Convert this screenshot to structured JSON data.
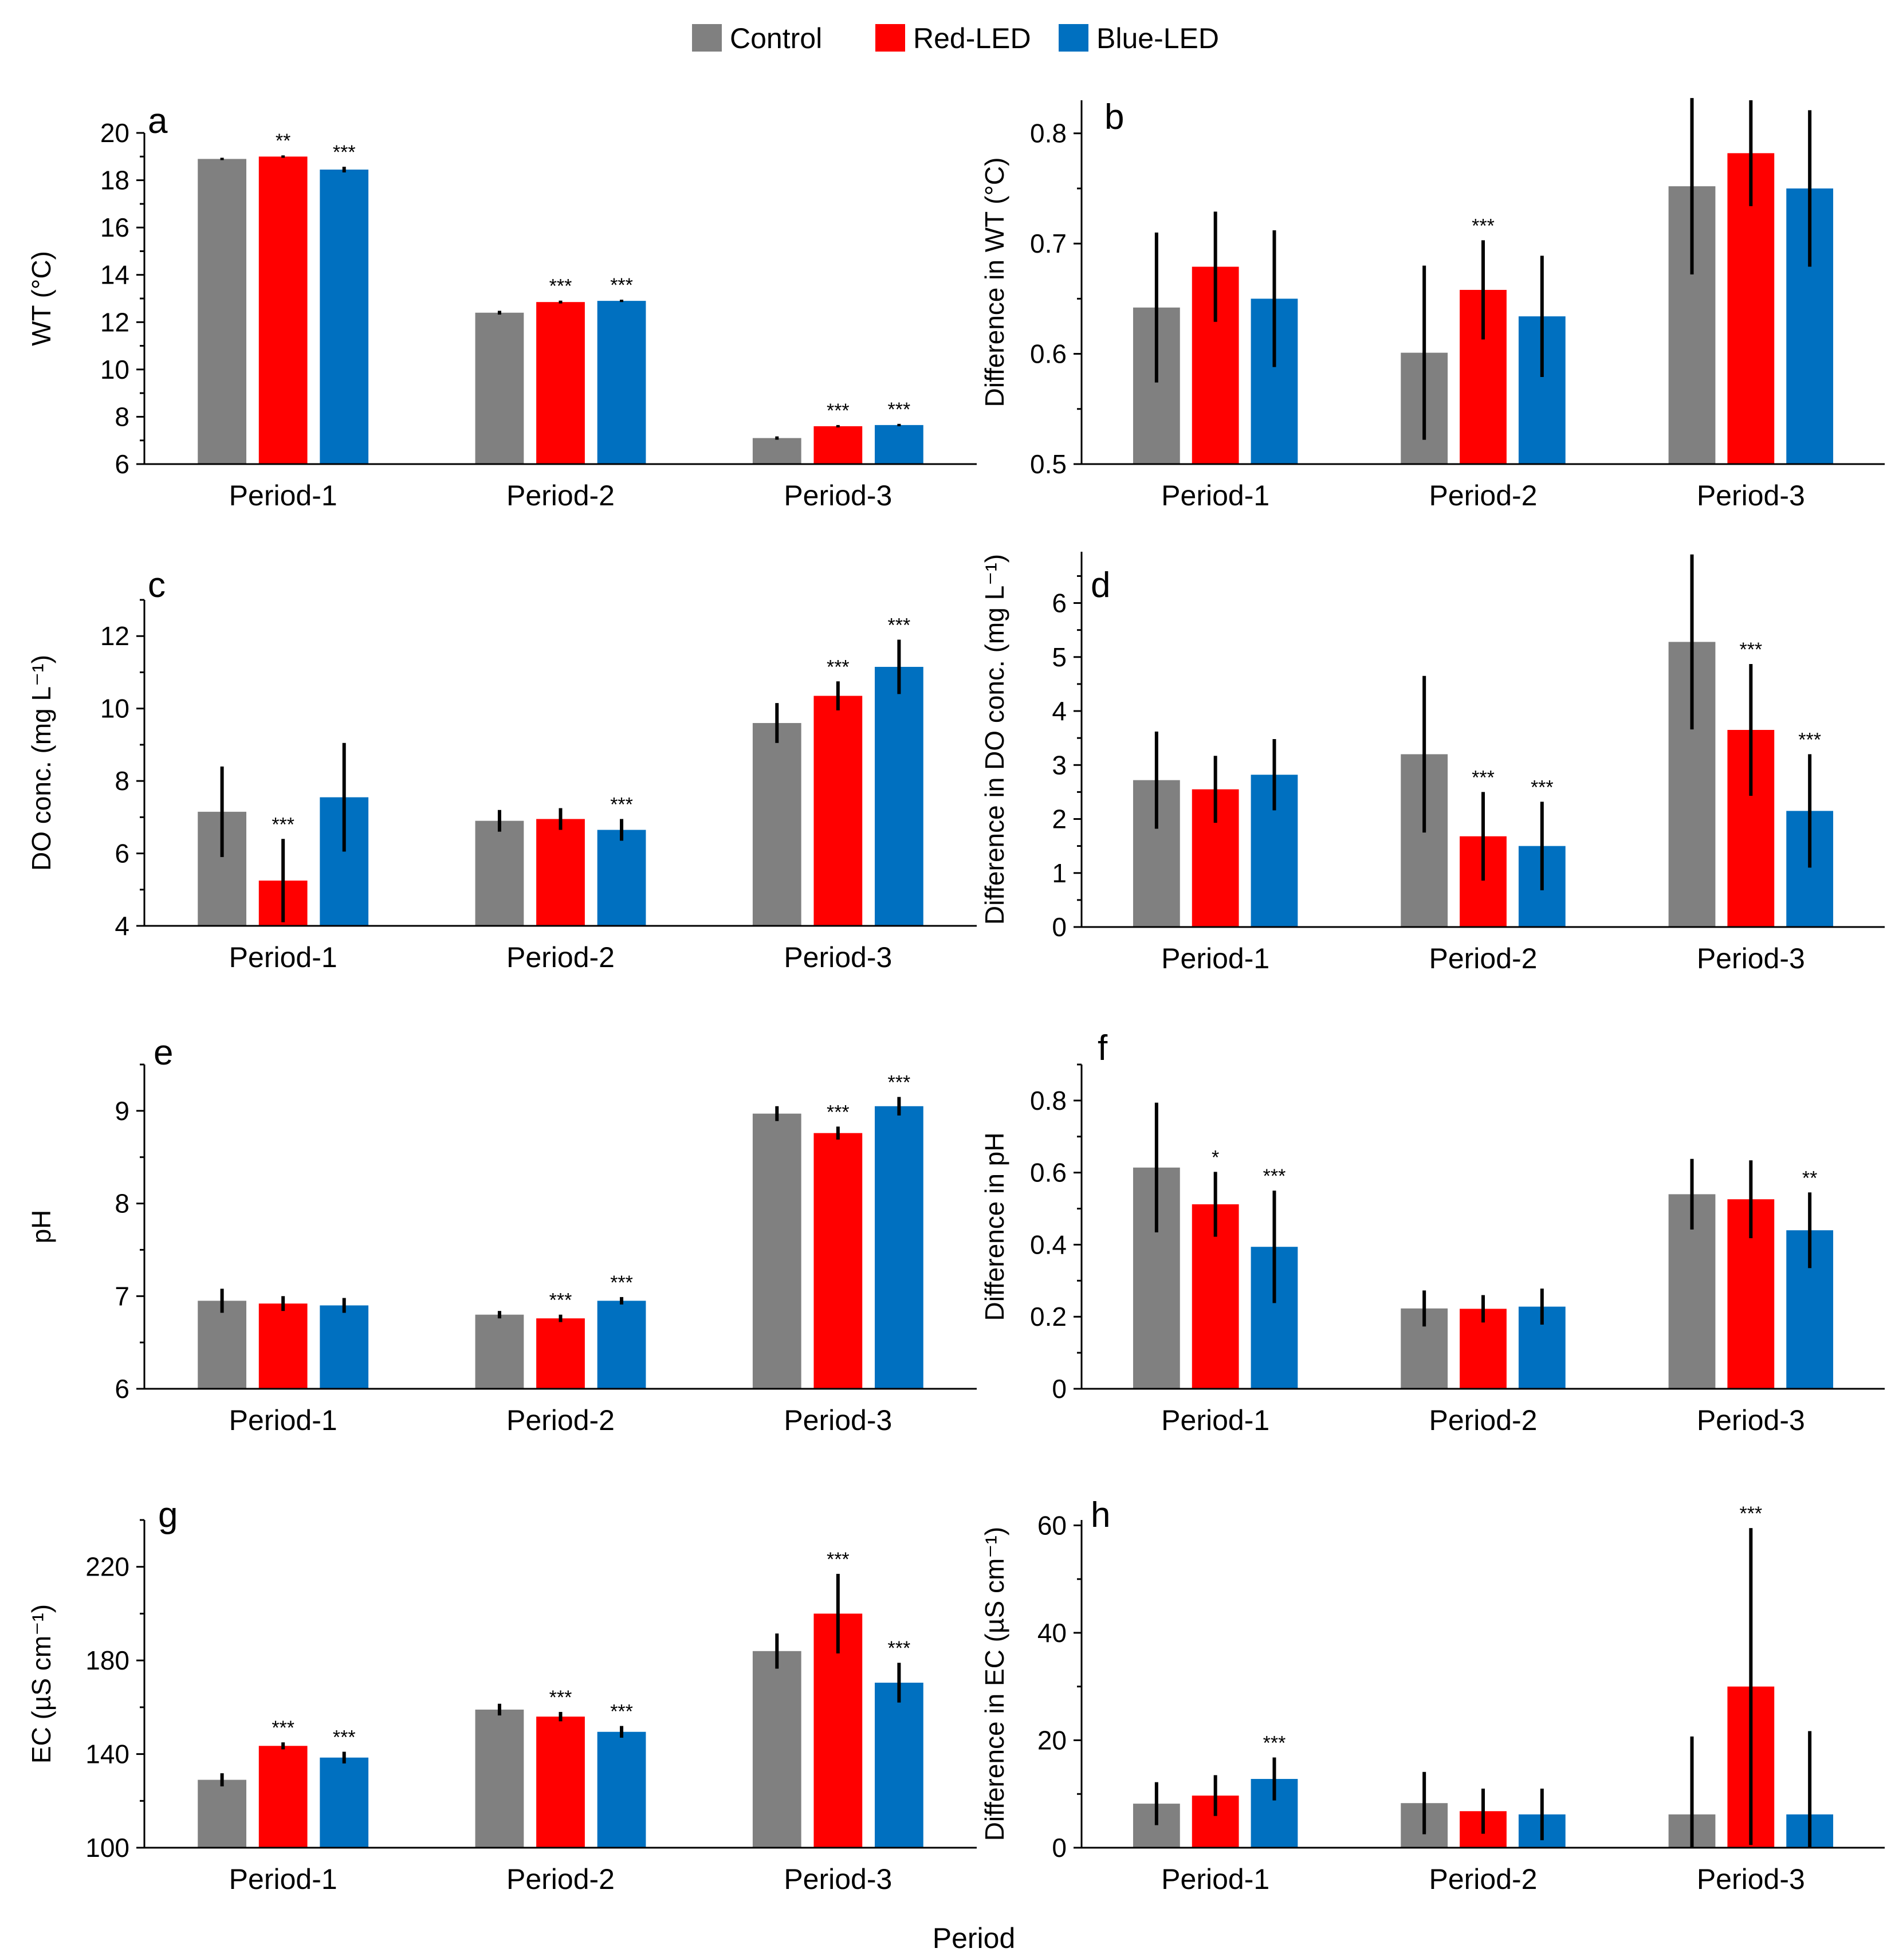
{
  "legend": [
    {
      "label": "Control",
      "color": "#808080"
    },
    {
      "label": "Red-LED",
      "color": "#ff0000"
    },
    {
      "label": "Blue-LED",
      "color": "#0070c0"
    }
  ],
  "x_title": "Period",
  "chart_data": [
    {
      "id": "a",
      "letter": "a",
      "type": "bar",
      "categories": [
        "Period-1",
        "Period-2",
        "Period-3"
      ],
      "ylabel": "WT (°C)",
      "ylim": [
        6,
        20
      ],
      "yticks": [
        6,
        8,
        10,
        12,
        14,
        16,
        18,
        20
      ],
      "series": [
        {
          "name": "Control",
          "values": [
            18.9,
            12.4,
            7.1
          ],
          "errors": [
            0.05,
            0.08,
            0.07
          ],
          "sig": [
            "",
            "",
            ""
          ]
        },
        {
          "name": "Red-LED",
          "values": [
            19.0,
            12.85,
            7.6
          ],
          "errors": [
            0.05,
            0.06,
            0.05
          ],
          "sig": [
            "**",
            "***",
            "***"
          ]
        },
        {
          "name": "Blue-LED",
          "values": [
            18.45,
            12.9,
            7.65
          ],
          "errors": [
            0.12,
            0.05,
            0.05
          ],
          "sig": [
            "***",
            "***",
            "***"
          ]
        }
      ]
    },
    {
      "id": "b",
      "letter": "b",
      "type": "bar",
      "categories": [
        "Period-1",
        "Period-2",
        "Period-3"
      ],
      "ylabel": "Difference in WT (°C)",
      "ylim": [
        0.5,
        0.83
      ],
      "yticks": [
        0.5,
        0.6,
        0.7,
        0.8
      ],
      "series": [
        {
          "name": "Control",
          "values": [
            0.642,
            0.601,
            0.752
          ],
          "errors": [
            0.068,
            0.079,
            0.08
          ],
          "sig": [
            "",
            "",
            ""
          ]
        },
        {
          "name": "Red-LED",
          "values": [
            0.679,
            0.658,
            0.782
          ],
          "errors": [
            0.05,
            0.045,
            0.048
          ],
          "sig": [
            "",
            "***",
            ""
          ]
        },
        {
          "name": "Blue-LED",
          "values": [
            0.65,
            0.634,
            0.75
          ],
          "errors": [
            0.062,
            0.055,
            0.071
          ],
          "sig": [
            "",
            "",
            ""
          ]
        }
      ]
    },
    {
      "id": "c",
      "letter": "c",
      "type": "bar",
      "categories": [
        "Period-1",
        "Period-2",
        "Period-3"
      ],
      "ylabel": "DO conc. (mg L⁻¹)",
      "ylim": [
        4,
        13
      ],
      "yticks": [
        4,
        6,
        8,
        10,
        12
      ],
      "series": [
        {
          "name": "Control",
          "values": [
            7.15,
            6.9,
            9.6
          ],
          "errors": [
            1.25,
            0.3,
            0.55
          ],
          "sig": [
            "",
            "",
            ""
          ]
        },
        {
          "name": "Red-LED",
          "values": [
            5.25,
            6.95,
            10.35
          ],
          "errors": [
            1.15,
            0.3,
            0.4
          ],
          "sig": [
            "***",
            "",
            "***"
          ]
        },
        {
          "name": "Blue-LED",
          "values": [
            7.55,
            6.65,
            11.15
          ],
          "errors": [
            1.5,
            0.3,
            0.75
          ],
          "sig": [
            "",
            "***",
            "***"
          ]
        }
      ]
    },
    {
      "id": "d",
      "letter": "d",
      "type": "bar",
      "categories": [
        "Period-1",
        "Period-2",
        "Period-3"
      ],
      "ylabel": "Difference in DO conc. (mg L⁻¹)",
      "ylim": [
        0,
        6.95
      ],
      "yticks": [
        0,
        1,
        2,
        3,
        4,
        5,
        6
      ],
      "series": [
        {
          "name": "Control",
          "values": [
            2.72,
            3.2,
            5.28
          ],
          "errors": [
            0.9,
            1.45,
            1.62
          ],
          "sig": [
            "",
            "",
            ""
          ]
        },
        {
          "name": "Red-LED",
          "values": [
            2.55,
            1.68,
            3.65
          ],
          "errors": [
            0.62,
            0.82,
            1.22
          ],
          "sig": [
            "",
            "***",
            "***"
          ]
        },
        {
          "name": "Blue-LED",
          "values": [
            2.82,
            1.5,
            2.15
          ],
          "errors": [
            0.66,
            0.82,
            1.05
          ],
          "sig": [
            "",
            "***",
            "***"
          ]
        }
      ]
    },
    {
      "id": "e",
      "letter": "e",
      "type": "bar",
      "categories": [
        "Period-1",
        "Period-2",
        "Period-3"
      ],
      "ylabel": "pH",
      "ylim": [
        6,
        9.5
      ],
      "yticks": [
        6,
        7,
        8,
        9
      ],
      "series": [
        {
          "name": "Control",
          "values": [
            6.95,
            6.8,
            8.97
          ],
          "errors": [
            0.13,
            0.04,
            0.08
          ],
          "sig": [
            "",
            "",
            ""
          ]
        },
        {
          "name": "Red-LED",
          "values": [
            6.92,
            6.76,
            8.76
          ],
          "errors": [
            0.08,
            0.04,
            0.07
          ],
          "sig": [
            "",
            "***",
            "***"
          ]
        },
        {
          "name": "Blue-LED",
          "values": [
            6.9,
            6.95,
            9.05
          ],
          "errors": [
            0.08,
            0.04,
            0.1
          ],
          "sig": [
            "",
            "***",
            "***"
          ]
        }
      ]
    },
    {
      "id": "f",
      "letter": "f",
      "type": "bar",
      "categories": [
        "Period-1",
        "Period-2",
        "Period-3"
      ],
      "ylabel": "Difference in pH",
      "ylim": [
        0,
        0.9
      ],
      "yticks": [
        0,
        0.2,
        0.4,
        0.6,
        0.8
      ],
      "series": [
        {
          "name": "Control",
          "values": [
            0.614,
            0.223,
            0.54
          ],
          "errors": [
            0.18,
            0.05,
            0.098
          ],
          "sig": [
            "",
            "",
            ""
          ]
        },
        {
          "name": "Red-LED",
          "values": [
            0.512,
            0.222,
            0.526
          ],
          "errors": [
            0.09,
            0.038,
            0.108
          ],
          "sig": [
            "*",
            "",
            ""
          ]
        },
        {
          "name": "Blue-LED",
          "values": [
            0.394,
            0.228,
            0.44
          ],
          "errors": [
            0.156,
            0.05,
            0.105
          ],
          "sig": [
            "***",
            "",
            "**"
          ]
        }
      ]
    },
    {
      "id": "g",
      "letter": "g",
      "type": "bar",
      "categories": [
        "Period-1",
        "Period-2",
        "Period-3"
      ],
      "ylabel": "EC (µS cm⁻¹)",
      "ylim": [
        100,
        240
      ],
      "yticks": [
        100,
        140,
        180,
        220
      ],
      "series": [
        {
          "name": "Control",
          "values": [
            129,
            159,
            184
          ],
          "errors": [
            2.8,
            2.5,
            7.5
          ],
          "sig": [
            "",
            "",
            ""
          ]
        },
        {
          "name": "Red-LED",
          "values": [
            143.5,
            156,
            200
          ],
          "errors": [
            1.5,
            2.0,
            17
          ],
          "sig": [
            "***",
            "***",
            "***"
          ]
        },
        {
          "name": "Blue-LED",
          "values": [
            138.5,
            149.5,
            170.5
          ],
          "errors": [
            2.5,
            2.5,
            8.5
          ],
          "sig": [
            "***",
            "***",
            "***"
          ]
        }
      ]
    },
    {
      "id": "h",
      "letter": "h",
      "type": "bar",
      "categories": [
        "Period-1",
        "Period-2",
        "Period-3"
      ],
      "ylabel": "Difference in EC (µS cm⁻¹)",
      "ylim": [
        0,
        61
      ],
      "yticks": [
        0,
        20,
        40,
        60
      ],
      "series": [
        {
          "name": "Control",
          "values": [
            8.2,
            8.3,
            6.2
          ],
          "errors": [
            4.0,
            5.8,
            14.5
          ],
          "sig": [
            "",
            "",
            ""
          ]
        },
        {
          "name": "Red-LED",
          "values": [
            9.7,
            6.8,
            30
          ],
          "errors": [
            3.8,
            4.2,
            29.5
          ],
          "sig": [
            "",
            "",
            "***"
          ]
        },
        {
          "name": "Blue-LED",
          "values": [
            12.8,
            6.2,
            6.2
          ],
          "errors": [
            4.0,
            4.8,
            15.5
          ],
          "sig": [
            "***",
            "",
            ""
          ]
        }
      ]
    }
  ]
}
